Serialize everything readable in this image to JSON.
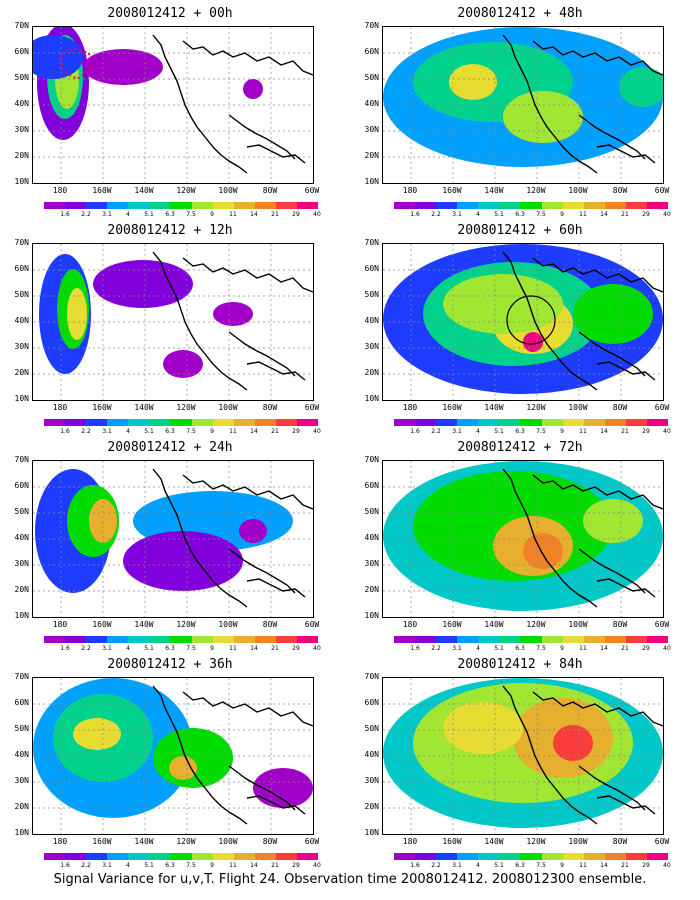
{
  "colorbar": {
    "labels": [
      "1.6",
      "2.2",
      "3.1",
      "4",
      "5.1",
      "6.3",
      "7.5",
      "9",
      "11",
      "14",
      "21",
      "29",
      "40"
    ],
    "colors": [
      "#a000c8",
      "#8200dc",
      "#1e3cff",
      "#00a0ff",
      "#00c8c8",
      "#00d28c",
      "#00dc00",
      "#a0e632",
      "#e6dc32",
      "#e6af2d",
      "#f08228",
      "#fa3c3c",
      "#f00082"
    ]
  },
  "axes": {
    "lat_labels": [
      "70N",
      "60N",
      "50N",
      "40N",
      "30N",
      "20N",
      "10N"
    ],
    "lon_labels": [
      "180",
      "160W",
      "140W",
      "120W",
      "100W",
      "80W",
      "60W"
    ]
  },
  "panels": [
    {
      "title": "2008012412 + 00h",
      "level": 0
    },
    {
      "title": "2008012412 + 12h",
      "level": 1
    },
    {
      "title": "2008012412 + 24h",
      "level": 2
    },
    {
      "title": "2008012412 + 36h",
      "level": 3
    },
    {
      "title": "2008012412 + 48h",
      "level": 4
    },
    {
      "title": "2008012412 + 60h",
      "level": 5
    },
    {
      "title": "2008012412 + 72h",
      "level": 6
    },
    {
      "title": "2008012412 + 84h",
      "level": 7
    }
  ],
  "caption": "Signal Variance for u,v,T. Flight 24. Observation time 2008012412. 2008012300 ensemble."
}
